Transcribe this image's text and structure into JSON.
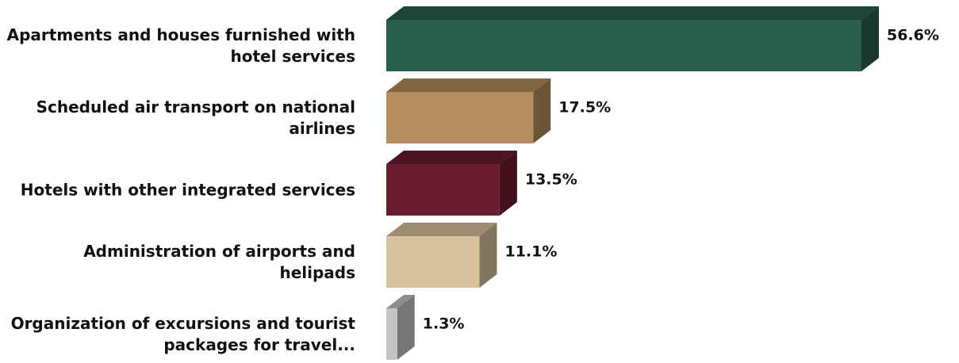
{
  "chart_data": {
    "type": "bar3d_horizontal",
    "categories": [
      "Apartments and houses furnished with hotel services",
      "Scheduled air transport on national airlines",
      "Hotels with other integrated services",
      "Administration of airports and helipads",
      "Organization of excursions and tourist packages for travel..."
    ],
    "values": [
      56.6,
      17.5,
      13.5,
      11.1,
      1.3
    ],
    "value_labels": [
      "56.6%",
      "17.5%",
      "13.5%",
      "11.1%",
      "1.3%"
    ],
    "colors": [
      "#2a5e4c",
      "#b48c5e",
      "#6b1c30",
      "#d8c29d",
      "#c4c4c4"
    ]
  }
}
